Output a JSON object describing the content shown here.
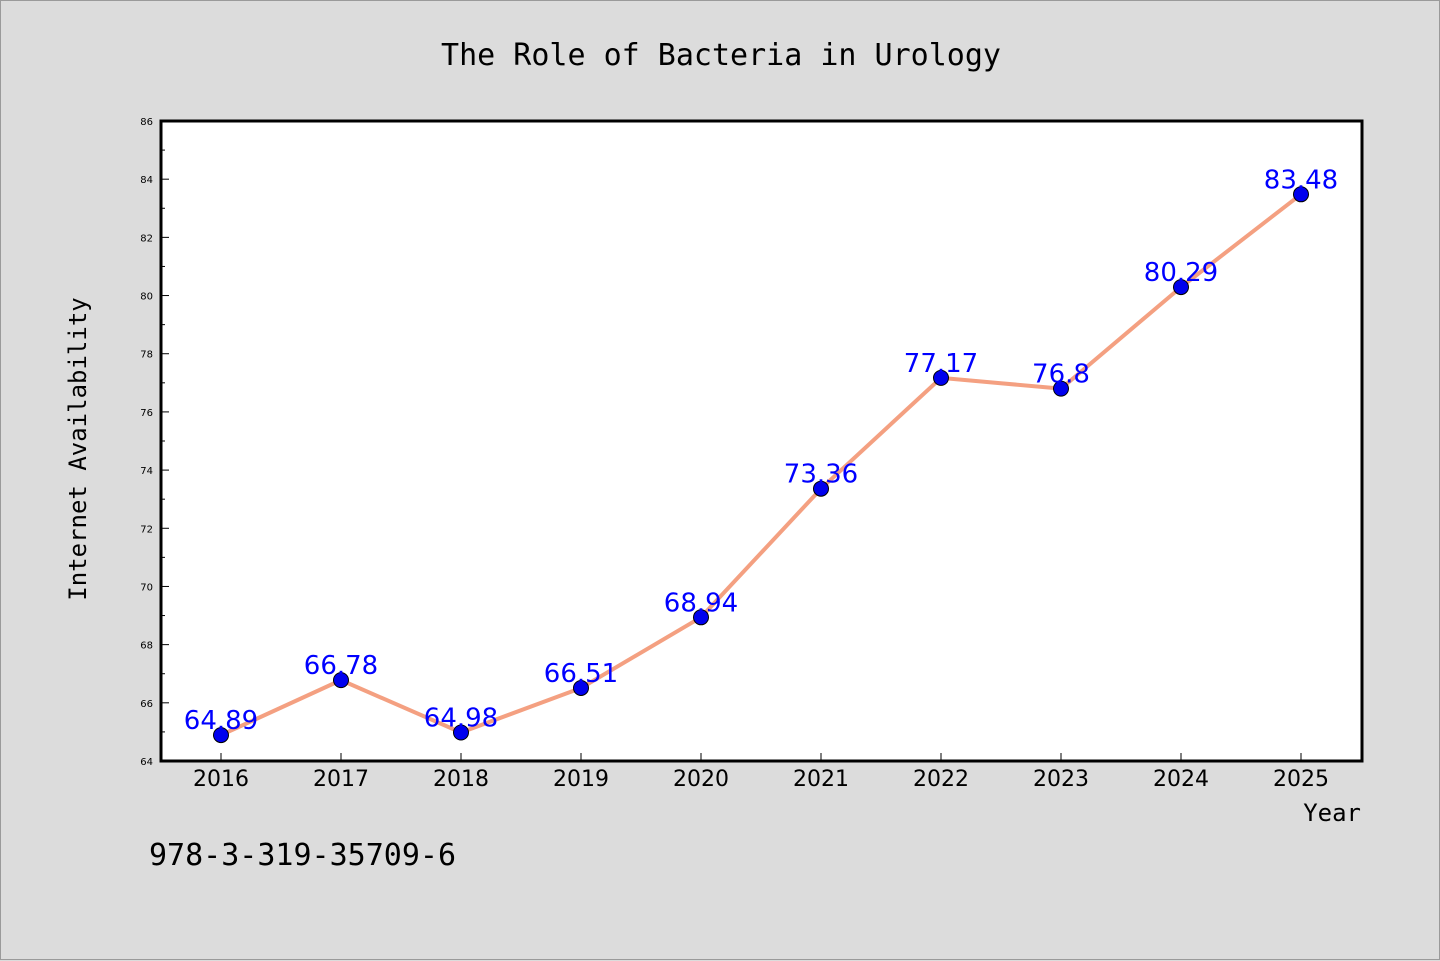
{
  "chart_data": {
    "type": "line",
    "title": "The Role of Bacteria in Urology",
    "xlabel": "Year",
    "ylabel": "Internet Availability",
    "categories": [
      "2016",
      "2017",
      "2018",
      "2019",
      "2020",
      "2021",
      "2022",
      "2023",
      "2024",
      "2025"
    ],
    "series": [
      {
        "values": [
          64.89,
          66.78,
          64.98,
          66.51,
          68.94,
          73.36,
          77.17,
          76.8,
          80.29,
          83.48
        ],
        "labels": [
          "64.89",
          "66.78",
          "64.98",
          "66.51",
          "68.94",
          "73.36",
          "77.17",
          "76.8",
          "80.29",
          "83.48"
        ],
        "line_color": "#f4a081",
        "marker_color": "#0000ee"
      }
    ],
    "ylim": [
      64,
      86
    ],
    "yticks": [
      "64",
      "66",
      "68",
      "70",
      "72",
      "74",
      "76",
      "78",
      "80",
      "82",
      "84",
      "86"
    ],
    "grid": false,
    "legend": "none",
    "label_color": "#0000ff",
    "background_color": "#dcdcdc",
    "plot_background_color": "#ffffff"
  },
  "footnote": "978-3-319-35709-6"
}
